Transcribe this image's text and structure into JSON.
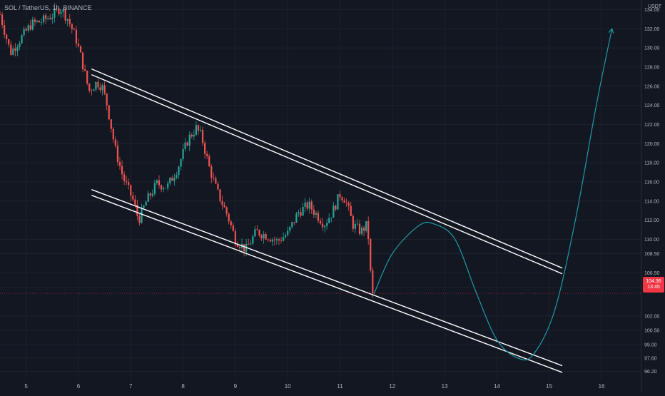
{
  "header": {
    "symbol_line": "SOL / TetherUS, 1h, BINANCE"
  },
  "price_axis": {
    "unit": "USDT",
    "last_price": "104.36",
    "countdown": "13:45"
  },
  "colors": {
    "background": "#131722",
    "grid": "#1e222d",
    "bull_candle": "#26a69a",
    "bear_candle": "#ef5350",
    "channel_lines": "#ffffff",
    "projection": "#1e9aa6",
    "last_price_tag": "#f23645",
    "axis_text": "#b2b5be"
  },
  "chart_data": {
    "type": "candlestick",
    "symbol": "SOL / TetherUS",
    "interval": "1h",
    "exchange": "BINANCE",
    "x_ticks": [
      "5",
      "6",
      "7",
      "8",
      "9",
      "10",
      "11",
      "12",
      "13",
      "14",
      "15",
      "16"
    ],
    "y_ticks": [
      "134.00",
      "132.00",
      "130.00",
      "128.00",
      "126.00",
      "124.00",
      "122.00",
      "120.00",
      "118.00",
      "116.00",
      "114.00",
      "112.00",
      "110.00",
      "108.50",
      "106.50",
      "105.00",
      "102.00",
      "100.50",
      "99.00",
      "97.60",
      "96.20"
    ],
    "ylim": [
      95.2,
      135.0
    ],
    "xlim": [
      4.5,
      16.75
    ],
    "last_price": 104.36,
    "price_path": [
      [
        4.5,
        133.5
      ],
      [
        4.7,
        129.5
      ],
      [
        4.9,
        131.0
      ],
      [
        5.1,
        132.5
      ],
      [
        5.3,
        132.8
      ],
      [
        5.5,
        133.4
      ],
      [
        5.65,
        134.2
      ],
      [
        5.8,
        133.0
      ],
      [
        5.95,
        131.0
      ],
      [
        6.05,
        129.0
      ],
      [
        6.2,
        125.5
      ],
      [
        6.35,
        126.4
      ],
      [
        6.45,
        126.0
      ],
      [
        6.55,
        124.0
      ],
      [
        6.7,
        119.5
      ],
      [
        6.85,
        116.5
      ],
      [
        7.05,
        114.0
      ],
      [
        7.15,
        112.0
      ],
      [
        7.3,
        114.0
      ],
      [
        7.5,
        115.8
      ],
      [
        7.7,
        115.5
      ],
      [
        7.9,
        117.5
      ],
      [
        8.1,
        120.5
      ],
      [
        8.25,
        121.6
      ],
      [
        8.35,
        120.8
      ],
      [
        8.5,
        117.5
      ],
      [
        8.65,
        115.0
      ],
      [
        8.85,
        112.5
      ],
      [
        9.0,
        110.0
      ],
      [
        9.2,
        108.9
      ],
      [
        9.4,
        110.8
      ],
      [
        9.6,
        110.4
      ],
      [
        9.8,
        109.8
      ],
      [
        10.0,
        110.6
      ],
      [
        10.2,
        112.8
      ],
      [
        10.4,
        113.6
      ],
      [
        10.55,
        112.6
      ],
      [
        10.7,
        111.6
      ],
      [
        10.85,
        112.8
      ],
      [
        11.0,
        114.7
      ],
      [
        11.1,
        114.2
      ],
      [
        11.25,
        111.5
      ],
      [
        11.4,
        110.8
      ],
      [
        11.5,
        111.4
      ],
      [
        11.55,
        110.0
      ],
      [
        11.6,
        104.7
      ],
      [
        11.65,
        104.36
      ]
    ],
    "channel_lines": [
      {
        "name": "upper-outer",
        "start": [
          6.25,
          127.8
        ],
        "end": [
          15.25,
          107.0
        ]
      },
      {
        "name": "upper-inner",
        "start": [
          6.25,
          127.2
        ],
        "end": [
          15.25,
          106.4
        ]
      },
      {
        "name": "lower-outer",
        "start": [
          6.25,
          115.2
        ],
        "end": [
          15.25,
          96.8
        ]
      },
      {
        "name": "lower-inner",
        "start": [
          6.25,
          114.6
        ],
        "end": [
          15.25,
          96.1
        ]
      }
    ],
    "projection_path": [
      [
        11.65,
        104.3
      ],
      [
        12.0,
        108.5
      ],
      [
        12.5,
        111.4
      ],
      [
        12.8,
        111.6
      ],
      [
        13.2,
        110.0
      ],
      [
        13.6,
        104.5
      ],
      [
        14.0,
        99.5
      ],
      [
        14.4,
        97.6
      ],
      [
        14.7,
        98.0
      ],
      [
        15.1,
        102.5
      ],
      [
        15.5,
        112.0
      ],
      [
        15.9,
        124.0
      ],
      [
        16.2,
        132.0
      ]
    ]
  }
}
